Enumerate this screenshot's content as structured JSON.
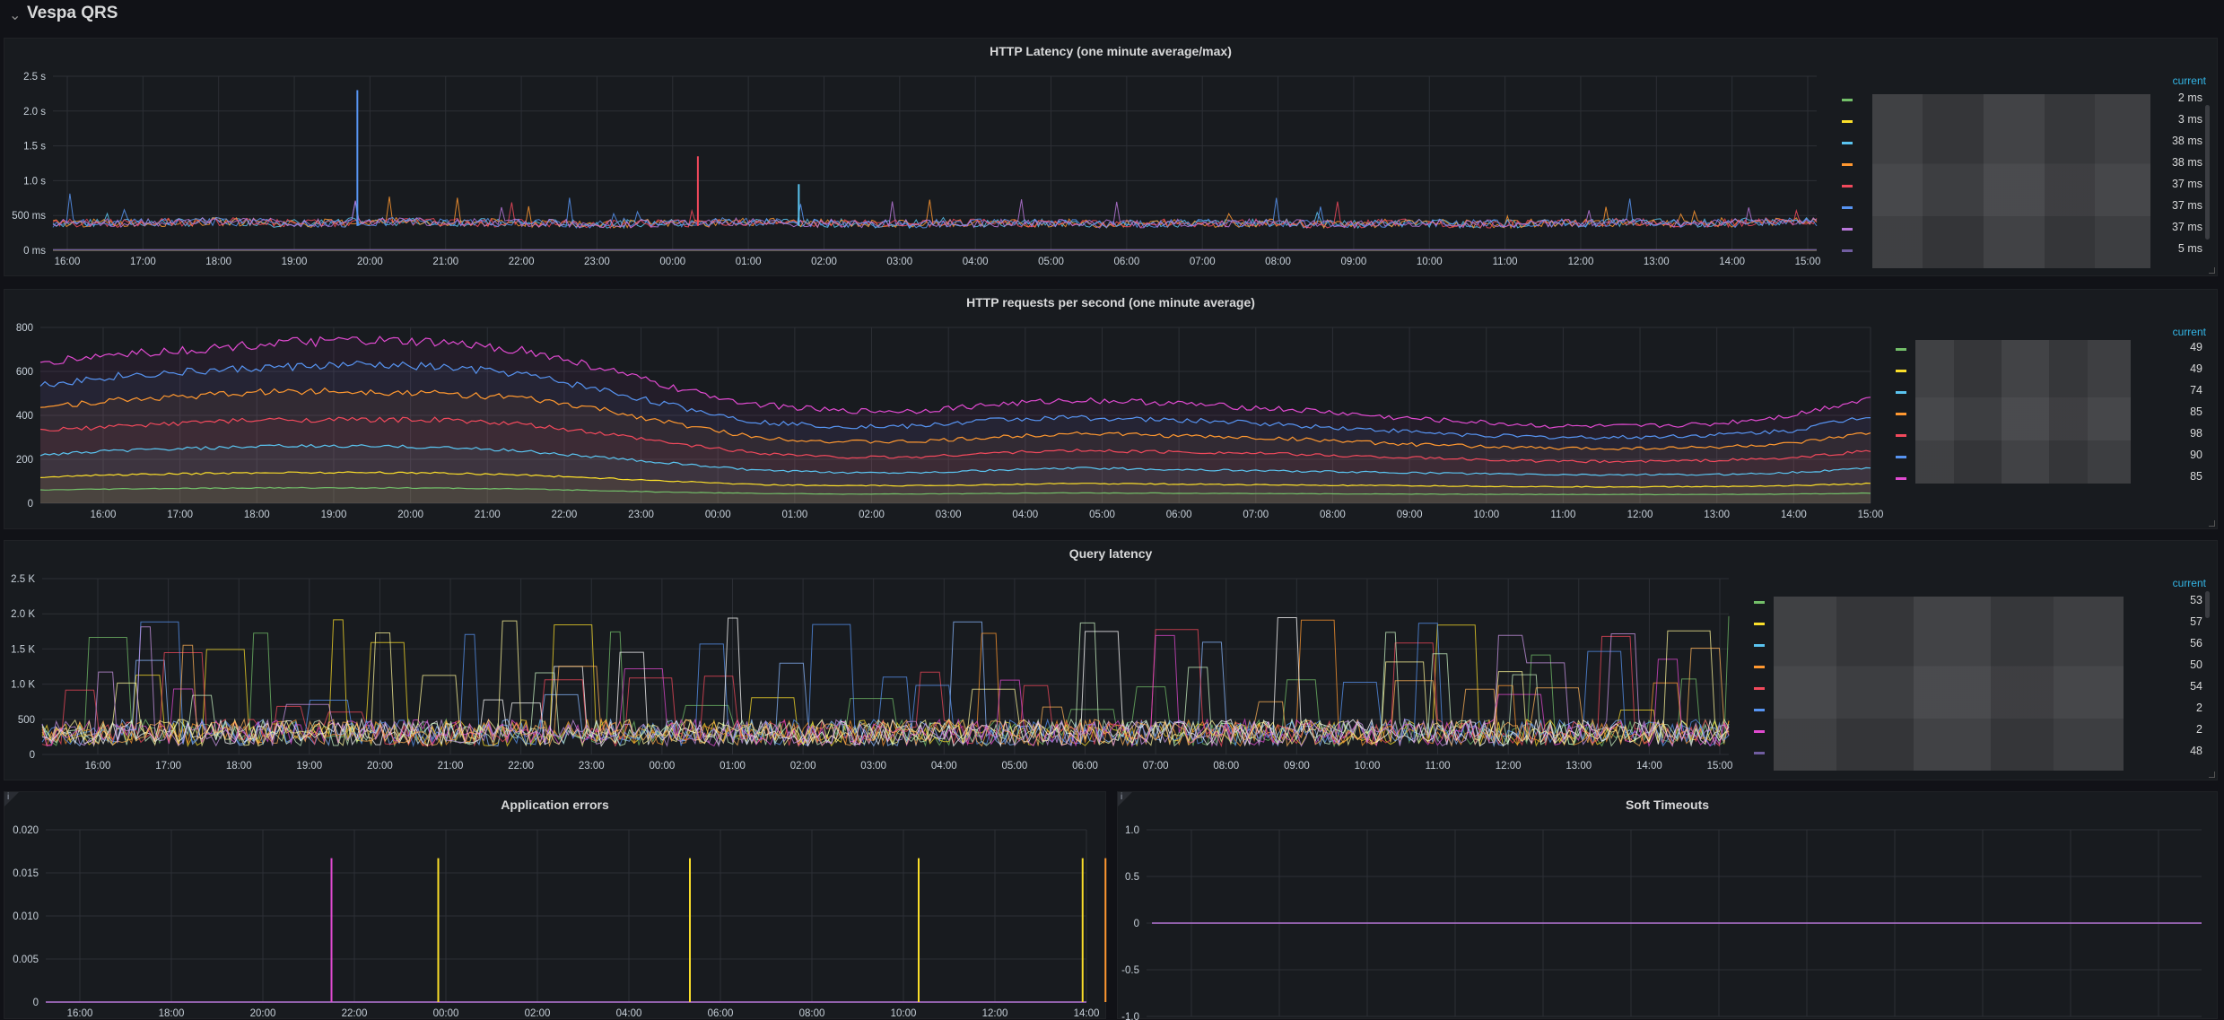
{
  "row": {
    "title": "Vespa QRS"
  },
  "panels": {
    "latency": {
      "title": "HTTP Latency (one minute average/max)",
      "y_ticks": [
        "2.5 s",
        "2.0 s",
        "1.5 s",
        "1.0 s",
        "500 ms",
        "0 ms"
      ],
      "x_ticks": [
        "16:00",
        "17:00",
        "18:00",
        "19:00",
        "20:00",
        "21:00",
        "22:00",
        "23:00",
        "00:00",
        "01:00",
        "02:00",
        "03:00",
        "04:00",
        "05:00",
        "06:00",
        "07:00",
        "08:00",
        "09:00",
        "10:00",
        "11:00",
        "12:00",
        "13:00",
        "14:00",
        "15:00"
      ],
      "legend_header": "current",
      "legend": [
        {
          "color": "#73bf69",
          "value": "2 ms"
        },
        {
          "color": "#fade2a",
          "value": "3 ms"
        },
        {
          "color": "#5ac4f0",
          "value": "38 ms"
        },
        {
          "color": "#ff9830",
          "value": "38 ms"
        },
        {
          "color": "#f2495c",
          "value": "37 ms"
        },
        {
          "color": "#5794f2",
          "value": "37 ms"
        },
        {
          "color": "#b877d9",
          "value": "37 ms"
        },
        {
          "color": "#705da0",
          "value": "5 ms"
        }
      ]
    },
    "rps": {
      "title": "HTTP requests per second (one minute average)",
      "y_ticks": [
        "800",
        "600",
        "400",
        "200",
        "0"
      ],
      "x_ticks": [
        "16:00",
        "17:00",
        "18:00",
        "19:00",
        "20:00",
        "21:00",
        "22:00",
        "23:00",
        "00:00",
        "01:00",
        "02:00",
        "03:00",
        "04:00",
        "05:00",
        "06:00",
        "07:00",
        "08:00",
        "09:00",
        "10:00",
        "11:00",
        "12:00",
        "13:00",
        "14:00",
        "15:00"
      ],
      "legend_header": "current",
      "legend": [
        {
          "color": "#73bf69",
          "value": "49"
        },
        {
          "color": "#fade2a",
          "value": "49"
        },
        {
          "color": "#5ac4f0",
          "value": "74"
        },
        {
          "color": "#ff9830",
          "value": "85"
        },
        {
          "color": "#f2495c",
          "value": "98"
        },
        {
          "color": "#5794f2",
          "value": "90"
        },
        {
          "color": "#e04ad0",
          "value": "85"
        }
      ]
    },
    "query": {
      "title": "Query latency",
      "y_ticks": [
        "2.5 K",
        "2.0 K",
        "1.5 K",
        "1.0 K",
        "500",
        "0"
      ],
      "x_ticks": [
        "16:00",
        "17:00",
        "18:00",
        "19:00",
        "20:00",
        "21:00",
        "22:00",
        "23:00",
        "00:00",
        "01:00",
        "02:00",
        "03:00",
        "04:00",
        "05:00",
        "06:00",
        "07:00",
        "08:00",
        "09:00",
        "10:00",
        "11:00",
        "12:00",
        "13:00",
        "14:00",
        "15:00"
      ],
      "legend_header": "current",
      "legend": [
        {
          "color": "#73bf69",
          "value": "53"
        },
        {
          "color": "#fade2a",
          "value": "57"
        },
        {
          "color": "#5ac4f0",
          "value": "56"
        },
        {
          "color": "#ff9830",
          "value": "50"
        },
        {
          "color": "#f2495c",
          "value": "54"
        },
        {
          "color": "#5794f2",
          "value": "2"
        },
        {
          "color": "#e04ad0",
          "value": "2"
        },
        {
          "color": "#705da0",
          "value": "48"
        }
      ]
    },
    "errors": {
      "title": "Application errors",
      "info": "i",
      "y_ticks": [
        "0.020",
        "0.015",
        "0.010",
        "0.005",
        "0"
      ],
      "x_ticks": [
        "16:00",
        "18:00",
        "20:00",
        "22:00",
        "00:00",
        "02:00",
        "04:00",
        "06:00",
        "08:00",
        "10:00",
        "12:00",
        "14:00"
      ]
    },
    "timeouts": {
      "title": "Soft Timeouts",
      "info": "i",
      "y_ticks": [
        "1.0",
        "0.5",
        "0",
        "-0.5",
        "-1.0"
      ]
    }
  },
  "chart_data": [
    {
      "type": "line",
      "title": "HTTP Latency (one minute average/max)",
      "ylim": [
        0,
        2.5
      ],
      "x": [
        "16:00",
        "17:00",
        "18:00",
        "19:00",
        "20:00",
        "21:00",
        "22:00",
        "23:00",
        "00:00",
        "01:00",
        "02:00",
        "03:00",
        "04:00",
        "05:00",
        "06:00",
        "07:00",
        "08:00",
        "09:00",
        "10:00",
        "11:00",
        "12:00",
        "13:00",
        "14:00",
        "15:00"
      ],
      "series": [
        {
          "values": [
            0.38,
            0.39,
            0.4,
            0.38,
            0.4,
            0.39,
            0.38,
            0.37,
            0.38,
            0.4,
            0.38,
            0.37,
            0.38,
            0.38,
            0.37,
            0.38,
            0.38,
            0.37,
            0.38,
            0.37,
            0.38,
            0.39,
            0.38,
            0.4
          ]
        }
      ],
      "spikes": [
        {
          "x": "19:50",
          "y": 2.3
        },
        {
          "x": "00:20",
          "y": 1.35
        },
        {
          "x": "01:40",
          "y": 0.95
        }
      ]
    },
    {
      "type": "area",
      "title": "HTTP requests per second (one minute average)",
      "ylim": [
        0,
        800
      ],
      "x": [
        "16:00",
        "17:00",
        "18:00",
        "19:00",
        "20:00",
        "21:00",
        "22:00",
        "23:00",
        "00:00",
        "01:00",
        "02:00",
        "03:00",
        "04:00",
        "05:00",
        "06:00",
        "07:00",
        "08:00",
        "09:00",
        "10:00",
        "11:00",
        "12:00",
        "13:00",
        "14:00",
        "15:00"
      ],
      "series": [
        {
          "values": [
            640,
            680,
            700,
            730,
            740,
            730,
            700,
            620,
            520,
            450,
            420,
            420,
            450,
            470,
            460,
            440,
            420,
            390,
            370,
            350,
            350,
            360,
            400,
            480
          ]
        },
        {
          "values": [
            540,
            580,
            600,
            620,
            630,
            620,
            590,
            520,
            440,
            370,
            350,
            350,
            380,
            390,
            380,
            370,
            350,
            330,
            310,
            300,
            300,
            310,
            330,
            400
          ]
        },
        {
          "values": [
            440,
            470,
            490,
            510,
            510,
            500,
            480,
            430,
            360,
            300,
            280,
            280,
            300,
            320,
            310,
            300,
            290,
            270,
            260,
            250,
            250,
            255,
            270,
            320
          ]
        },
        {
          "values": [
            330,
            350,
            370,
            380,
            380,
            380,
            360,
            320,
            270,
            230,
            210,
            210,
            230,
            240,
            235,
            230,
            220,
            210,
            200,
            190,
            190,
            195,
            205,
            240
          ]
        },
        {
          "values": [
            220,
            240,
            250,
            260,
            260,
            255,
            240,
            210,
            180,
            150,
            140,
            140,
            150,
            160,
            155,
            150,
            145,
            140,
            135,
            130,
            130,
            130,
            140,
            160
          ]
        },
        {
          "values": [
            120,
            130,
            135,
            140,
            140,
            138,
            130,
            115,
            100,
            85,
            80,
            80,
            85,
            90,
            88,
            85,
            82,
            80,
            78,
            75,
            75,
            76,
            80,
            90
          ]
        },
        {
          "values": [
            60,
            65,
            68,
            70,
            70,
            69,
            65,
            58,
            50,
            45,
            42,
            42,
            45,
            47,
            46,
            45,
            43,
            42,
            41,
            40,
            40,
            40,
            42,
            46
          ]
        }
      ]
    },
    {
      "type": "line",
      "title": "Query latency",
      "ylim": [
        0,
        2500
      ],
      "x": [
        "16:00",
        "17:00",
        "18:00",
        "19:00",
        "20:00",
        "21:00",
        "22:00",
        "23:00",
        "00:00",
        "01:00",
        "02:00",
        "03:00",
        "04:00",
        "05:00",
        "06:00",
        "07:00",
        "08:00",
        "09:00",
        "10:00",
        "11:00",
        "12:00",
        "13:00",
        "14:00",
        "15:00"
      ],
      "series": [
        {
          "values": [
            300,
            350,
            320,
            300,
            340,
            330,
            360,
            350,
            380,
            400,
            340,
            330,
            320,
            330,
            350,
            380,
            360,
            330,
            320,
            330,
            340,
            350,
            360,
            400
          ]
        }
      ]
    },
    {
      "type": "bar",
      "title": "Application errors",
      "ylim": [
        0,
        0.02
      ],
      "x": [
        "21:30",
        "23:50",
        "05:20",
        "10:20",
        "13:55",
        "14:25"
      ],
      "values": [
        0.0167,
        0.0167,
        0.0167,
        0.0167,
        0.0167,
        0.0167
      ]
    },
    {
      "type": "line",
      "title": "Soft Timeouts",
      "ylim": [
        -1,
        1
      ],
      "series": [
        {
          "values": [
            0,
            0,
            0,
            0,
            0,
            0,
            0,
            0,
            0,
            0,
            0,
            0
          ]
        }
      ]
    }
  ]
}
